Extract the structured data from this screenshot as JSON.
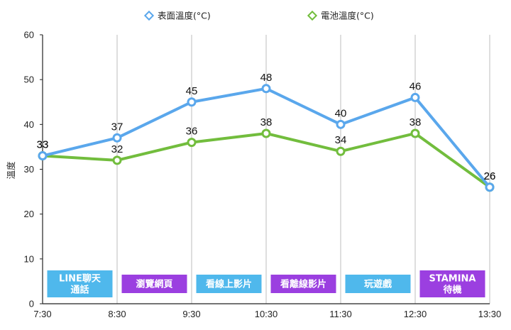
{
  "chart_data": {
    "type": "line",
    "title": "",
    "xlabel": "",
    "ylabel": "溫度",
    "ylim": [
      0,
      60
    ],
    "y_ticks": [
      0,
      10,
      20,
      30,
      40,
      50,
      60
    ],
    "categories": [
      "7:30",
      "8:30",
      "9:30",
      "10:30",
      "11:30",
      "12:30",
      "13:30"
    ],
    "grid": "vertical",
    "legend_position": "top-center",
    "series": [
      {
        "name": "表面溫度(°C)",
        "color": "#5aa7ec",
        "values": [
          33,
          37,
          45,
          48,
          40,
          46,
          26
        ]
      },
      {
        "name": "電池溫度(°C)",
        "color": "#72bd3d",
        "values": [
          33,
          32,
          36,
          38,
          34,
          38,
          26
        ]
      }
    ],
    "annotations": [
      {
        "lines": [
          "LINE聊天",
          "通話"
        ],
        "color": "#4fb8ec"
      },
      {
        "lines": [
          "瀏覽網頁"
        ],
        "color": "#9b3fe0"
      },
      {
        "lines": [
          "看線上影片"
        ],
        "color": "#4fb8ec"
      },
      {
        "lines": [
          "看離線影片"
        ],
        "color": "#9b3fe0"
      },
      {
        "lines": [
          "玩遊戲"
        ],
        "color": "#4fb8ec"
      },
      {
        "lines": [
          "STAMINA",
          "待機"
        ],
        "color": "#9b3fe0"
      }
    ]
  }
}
